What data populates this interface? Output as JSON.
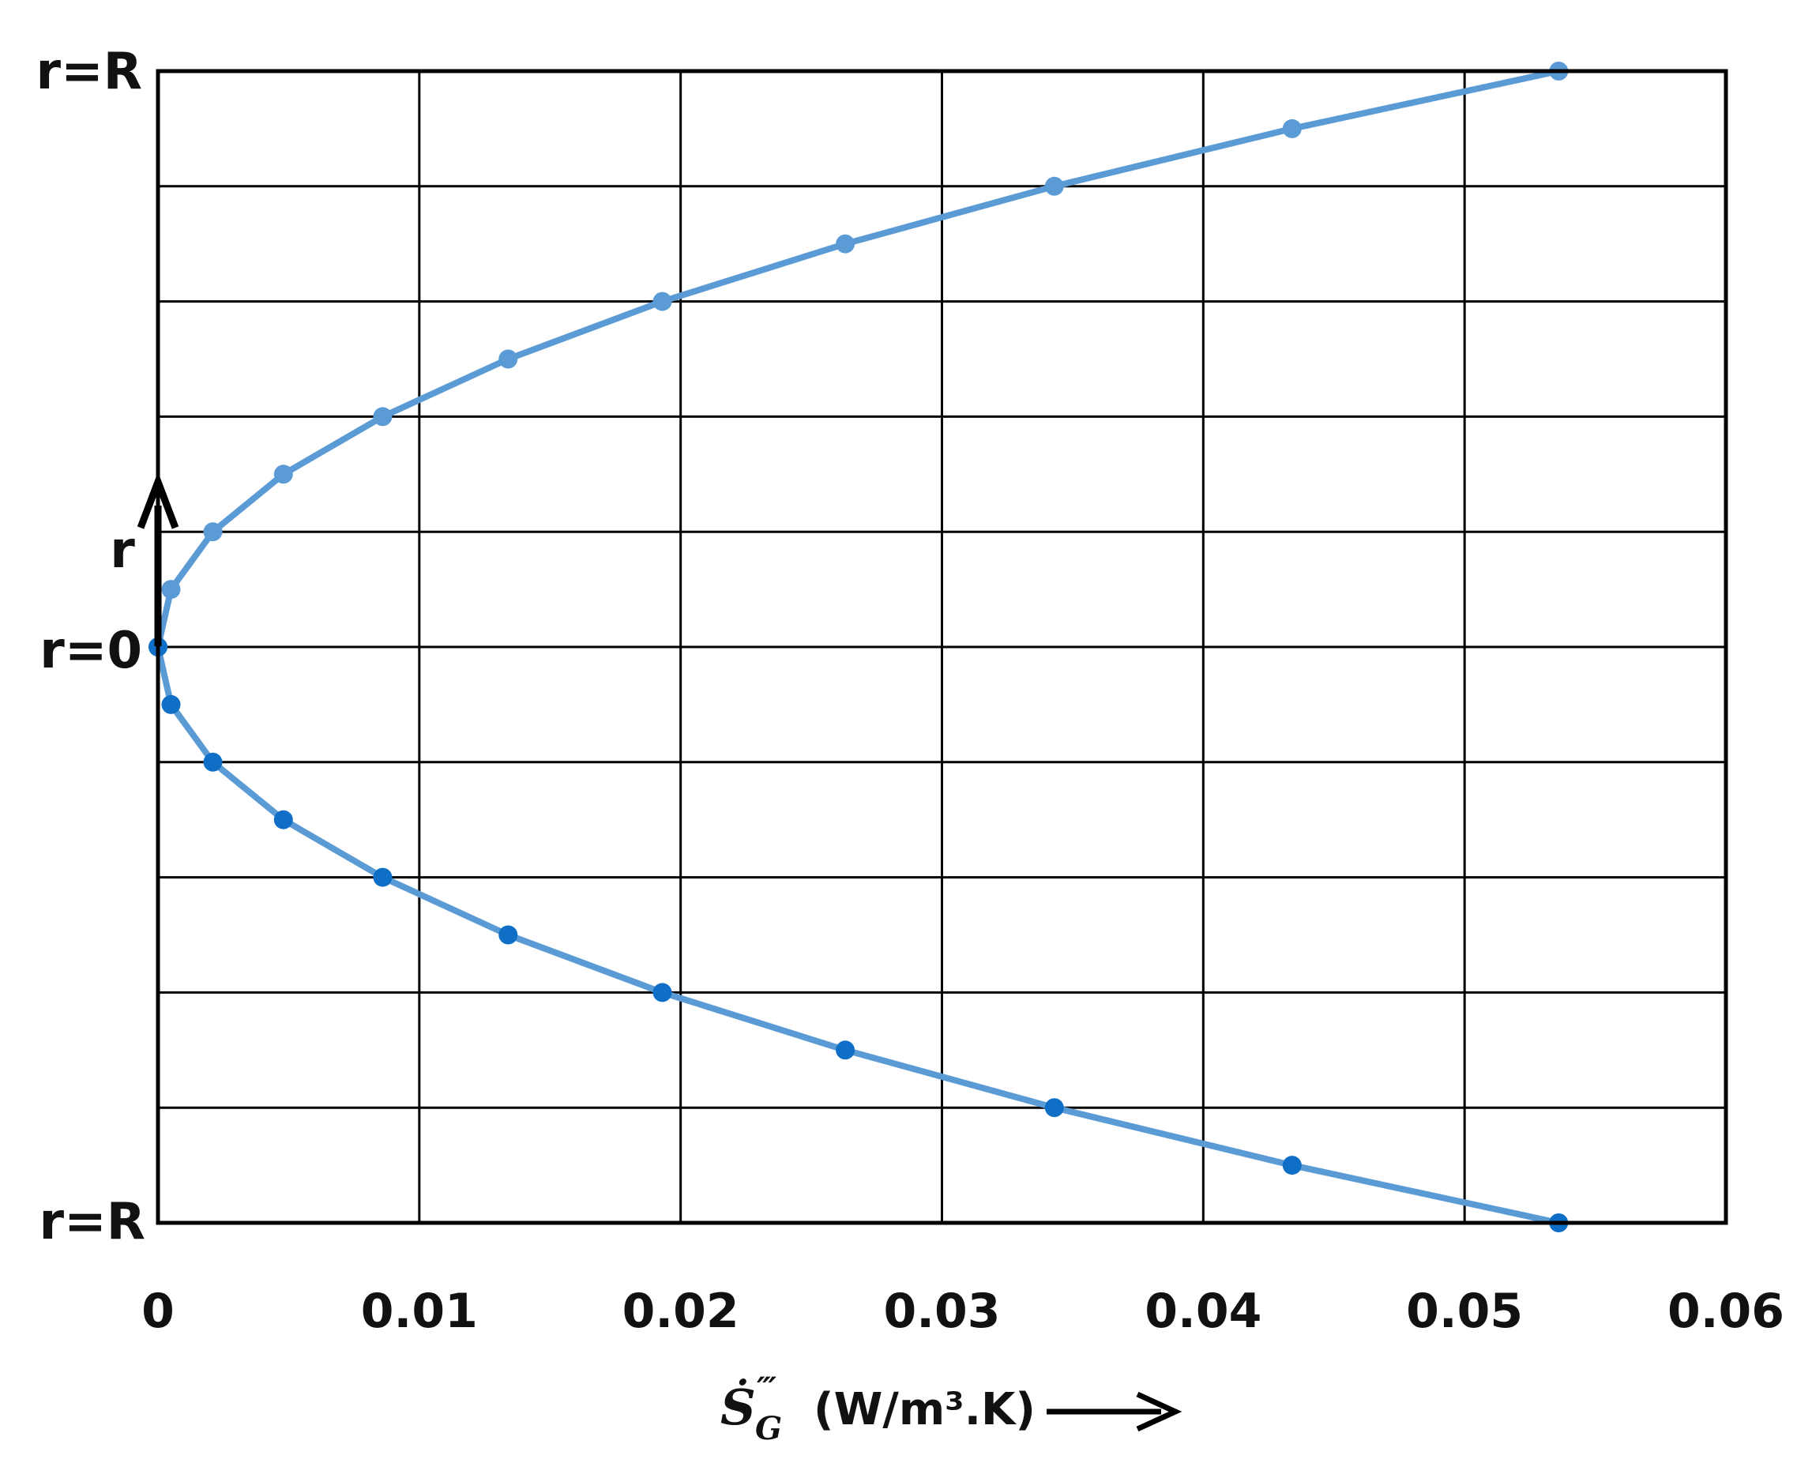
{
  "chart_data": {
    "type": "line",
    "xlabel": {
      "symbol": "Ṡ",
      "primes": "‴",
      "subscript": "G",
      "units": "(W/m³.K)"
    },
    "x_ticks": [
      "0",
      "0.01",
      "0.02",
      "0.03",
      "0.04",
      "0.05",
      "0.06"
    ],
    "xlim": [
      0,
      0.06
    ],
    "y_labels": {
      "top": "r=R",
      "middle": "r=0",
      "bottom": "r=R",
      "arrow": "r"
    },
    "ylim": [
      -1,
      1
    ],
    "grid": true,
    "series": [
      {
        "line_color": "#5b9bd5",
        "marker_color": "#5b9bd5",
        "points": [
          {
            "r": 0.0,
            "x": 0.0
          },
          {
            "r": 0.1,
            "x": 0.0005
          },
          {
            "r": 0.2,
            "x": 0.0021
          },
          {
            "r": 0.3,
            "x": 0.0048
          },
          {
            "r": 0.4,
            "x": 0.0086
          },
          {
            "r": 0.5,
            "x": 0.0134
          },
          {
            "r": 0.6,
            "x": 0.0193
          },
          {
            "r": 0.7,
            "x": 0.0263
          },
          {
            "r": 0.8,
            "x": 0.0343
          },
          {
            "r": 0.9,
            "x": 0.0434
          },
          {
            "r": 1.0,
            "x": 0.0536
          }
        ]
      },
      {
        "line_color": "#5b9bd5",
        "marker_color": "#0f6fc6",
        "points": [
          {
            "r": 0.0,
            "x": 0.0
          },
          {
            "r": -0.1,
            "x": 0.0005
          },
          {
            "r": -0.2,
            "x": 0.0021
          },
          {
            "r": -0.3,
            "x": 0.0048
          },
          {
            "r": -0.4,
            "x": 0.0086
          },
          {
            "r": -0.5,
            "x": 0.0134
          },
          {
            "r": -0.6,
            "x": 0.0193
          },
          {
            "r": -0.7,
            "x": 0.0263
          },
          {
            "r": -0.8,
            "x": 0.0343
          },
          {
            "r": -0.9,
            "x": 0.0434
          },
          {
            "r": -1.0,
            "x": 0.0536
          }
        ]
      }
    ]
  }
}
